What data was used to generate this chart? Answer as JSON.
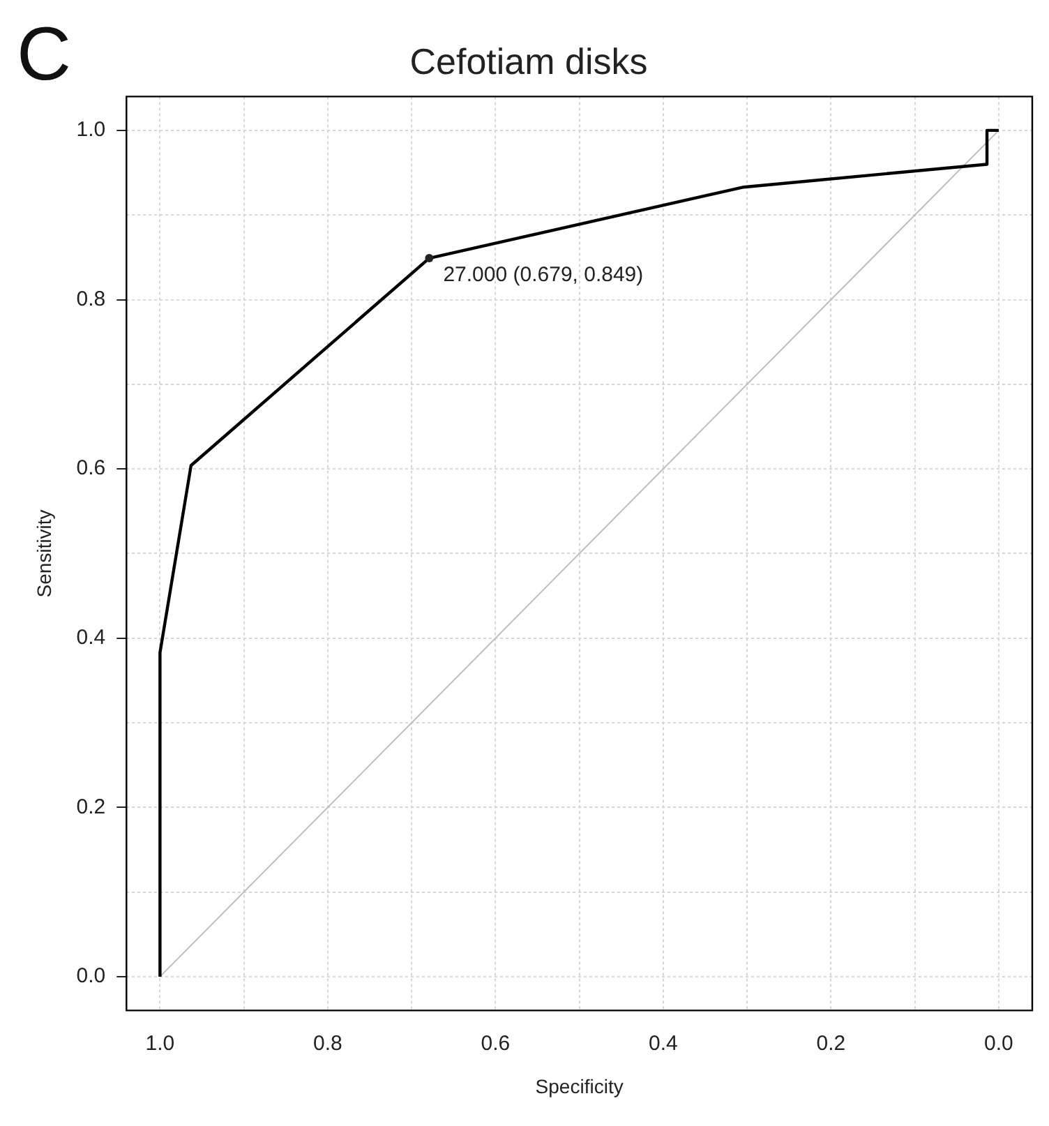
{
  "chart_data": {
    "type": "line",
    "title": "Cefotiam disks",
    "xlabel": "Specificity",
    "ylabel": "Sensitivity",
    "xlim": [
      1.04,
      -0.04
    ],
    "ylim": [
      -0.04,
      1.04
    ],
    "xticks": [
      {
        "value": 1,
        "label": "1.0"
      },
      {
        "value": 0.9,
        "label": null
      },
      0.8,
      {
        "value": 0.7,
        "label": null
      },
      0.6,
      {
        "value": 0.5,
        "label": null
      },
      0.4,
      {
        "value": 0.3,
        "label": null
      },
      0.2,
      {
        "value": 0.1,
        "label": null
      },
      {
        "value": 0,
        "label": "0.0"
      }
    ],
    "yticks": [
      {
        "value": 0,
        "label": "0.0"
      },
      {
        "value": 0.1,
        "label": null
      },
      0.2,
      {
        "value": 0.3,
        "label": null
      },
      0.4,
      {
        "value": 0.5,
        "label": null
      },
      0.6,
      {
        "value": 0.7,
        "label": null
      },
      0.8,
      {
        "value": 0.9,
        "label": null
      },
      {
        "value": 1,
        "label": "1.0"
      }
    ],
    "series": [
      {
        "color": "#000000",
        "x": [
          1.0,
          1.0,
          0.963,
          0.679,
          0.304,
          0.014,
          0.014,
          0.0
        ],
        "values": [
          0.0,
          0.383,
          0.604,
          0.849,
          0.933,
          0.96,
          1.0,
          1.0
        ]
      },
      {
        "color": "#bebebe",
        "x": [
          1.0,
          0.0
        ],
        "values": [
          0.0,
          1.0
        ]
      }
    ],
    "grid": true,
    "marker": "none",
    "line_style": "solid",
    "annotations": [
      "C",
      {
        "text": "27.000 (0.679, 0.849)",
        "x": 0.679,
        "y": 0.849
      }
    ]
  }
}
